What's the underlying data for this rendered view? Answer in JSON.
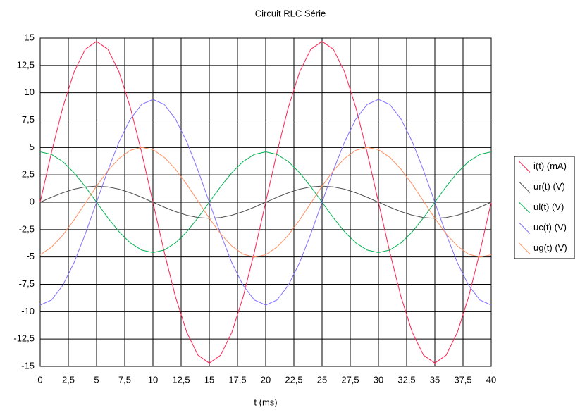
{
  "chart_data": {
    "type": "line",
    "title": "Circuit RLC Série",
    "xlabel": "t (ms)",
    "x": [
      0,
      1,
      2,
      3,
      4,
      5,
      6,
      7,
      8,
      9,
      10,
      11,
      12,
      13,
      14,
      15,
      16,
      17,
      18,
      19,
      20,
      21,
      22,
      23,
      24,
      25,
      26,
      27,
      28,
      29,
      30,
      31,
      32,
      33,
      34,
      35,
      36,
      37,
      38,
      39,
      40
    ],
    "series": [
      {
        "name": "i(t) (mA)",
        "color": "#ff2050",
        "values": [
          0,
          4.54,
          8.64,
          11.89,
          13.98,
          14.7,
          13.98,
          11.89,
          8.64,
          4.54,
          0,
          -4.54,
          -8.64,
          -11.89,
          -13.98,
          -14.7,
          -13.98,
          -11.89,
          -8.64,
          -4.54,
          0,
          4.54,
          8.64,
          11.89,
          13.98,
          14.7,
          13.98,
          11.89,
          8.64,
          4.54,
          0,
          -4.54,
          -8.64,
          -11.89,
          -13.98,
          -14.7,
          -13.98,
          -11.89,
          -8.64,
          -4.54,
          0
        ]
      },
      {
        "name": "ur(t) (V)",
        "color": "#505050",
        "values": [
          0,
          0.45,
          0.86,
          1.19,
          1.4,
          1.47,
          1.4,
          1.19,
          0.86,
          0.45,
          0,
          -0.45,
          -0.86,
          -1.19,
          -1.4,
          -1.47,
          -1.4,
          -1.19,
          -0.86,
          -0.45,
          0,
          0.45,
          0.86,
          1.19,
          1.4,
          1.47,
          1.4,
          1.19,
          0.86,
          0.45,
          0,
          -0.45,
          -0.86,
          -1.19,
          -1.4,
          -1.47,
          -1.4,
          -1.19,
          -0.86,
          -0.45,
          0
        ]
      },
      {
        "name": "ul(t) (V)",
        "color": "#00b050",
        "values": [
          4.6,
          4.37,
          3.72,
          2.7,
          1.42,
          0,
          -1.42,
          -2.7,
          -3.72,
          -4.37,
          -4.6,
          -4.37,
          -3.72,
          -2.7,
          -1.42,
          0,
          1.42,
          2.7,
          3.72,
          4.37,
          4.6,
          4.37,
          3.72,
          2.7,
          1.42,
          0,
          -1.42,
          -2.7,
          -3.72,
          -4.37,
          -4.6,
          -4.37,
          -3.72,
          -2.7,
          -1.42,
          0,
          1.42,
          2.7,
          3.72,
          4.37,
          4.6
        ]
      },
      {
        "name": "uc(t) (V)",
        "color": "#8070ff",
        "values": [
          -9.4,
          -8.94,
          -7.6,
          -5.53,
          -2.9,
          0,
          2.9,
          5.53,
          7.6,
          8.94,
          9.4,
          8.94,
          7.6,
          5.53,
          2.9,
          0,
          -2.9,
          -5.53,
          -7.6,
          -8.94,
          -9.4,
          -8.94,
          -7.6,
          -5.53,
          -2.9,
          0,
          2.9,
          5.53,
          7.6,
          8.94,
          9.4,
          8.94,
          7.6,
          5.53,
          2.9,
          0,
          -2.9,
          -5.53,
          -7.6,
          -8.94,
          -9.4
        ]
      },
      {
        "name": "ug(t) (V)",
        "color": "#ff9060",
        "values": [
          -4.8,
          -4.11,
          -3.02,
          -1.63,
          -0.09,
          1.47,
          2.88,
          4.01,
          4.75,
          5.01,
          4.8,
          4.11,
          3.02,
          1.63,
          0.09,
          -1.47,
          -2.88,
          -4.01,
          -4.75,
          -5.01,
          -4.8,
          -4.11,
          -3.02,
          -1.63,
          -0.09,
          1.47,
          2.88,
          4.01,
          4.75,
          5.01,
          4.8,
          4.11,
          3.02,
          1.63,
          0.09,
          -1.47,
          -2.88,
          -4.01,
          -4.75,
          -5.01,
          -4.8
        ]
      }
    ],
    "xlim": [
      0,
      40
    ],
    "xticks": [
      0,
      {
        "value": 2.5,
        "label": "2,5"
      },
      5,
      {
        "value": 7.5,
        "label": "7,5"
      },
      10,
      {
        "value": 12.5,
        "label": "12,5"
      },
      15,
      {
        "value": 17.5,
        "label": "17,5"
      },
      20,
      {
        "value": 22.5,
        "label": "22,5"
      },
      25,
      {
        "value": 27.5,
        "label": "27,5"
      },
      30,
      {
        "value": 32.5,
        "label": "32,5"
      },
      35,
      {
        "value": 37.5,
        "label": "37,5"
      },
      40
    ],
    "ylim": [
      -15,
      15
    ],
    "yticks": [
      -15,
      {
        "value": -12.5,
        "label": "-12,5"
      },
      -10,
      {
        "value": -7.5,
        "label": "-7,5"
      },
      -5,
      {
        "value": -2.5,
        "label": "-2,5"
      },
      0,
      {
        "value": 2.5,
        "label": "2,5"
      },
      5,
      {
        "value": 7.5,
        "label": "7,5"
      },
      10,
      {
        "value": 12.5,
        "label": "12,5"
      },
      15
    ],
    "grid": true,
    "legend": "right"
  }
}
